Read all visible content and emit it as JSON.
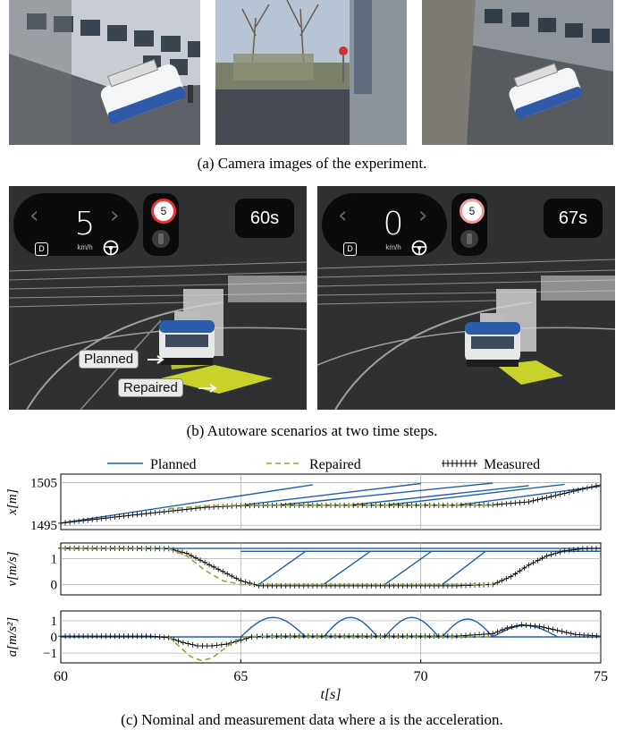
{
  "captions": {
    "a": "(a) Camera images of the experiment.",
    "b": "(b) Autoware scenarios at two time steps.",
    "c": "(c) Nominal and measurement data where a is the acceleration."
  },
  "scenarios": [
    {
      "speed": "5",
      "unit": "km/h",
      "gear": "D",
      "limit": "5",
      "time": "60s",
      "labels": {
        "planned": "Planned",
        "repaired": "Repaired"
      }
    },
    {
      "speed": "0",
      "unit": "km/h",
      "gear": "D",
      "limit": "5",
      "time": "67s"
    }
  ],
  "legend": {
    "planned": "Planned",
    "repaired": "Repaired",
    "measured": "Measured"
  },
  "colors": {
    "planned": "#1f5fa8",
    "repaired": "#8aac2e",
    "measured": "#000000",
    "grid": "#b0b0b0"
  },
  "chart_data": [
    {
      "type": "line",
      "ylabel": "x[m]",
      "ylim": [
        1494,
        1507
      ],
      "yticks": [
        1495,
        1505
      ],
      "xlim": [
        60,
        75
      ],
      "series": [
        {
          "name": "Measured",
          "x": [
            60,
            62,
            64,
            65,
            66,
            68,
            70,
            71,
            72,
            73,
            74,
            75
          ],
          "y": [
            1495.5,
            1497.4,
            1499.2,
            1499.6,
            1499.7,
            1499.7,
            1499.7,
            1499.7,
            1499.8,
            1500.5,
            1502.5,
            1504.5
          ]
        },
        {
          "name": "Repaired",
          "x": [
            63,
            64,
            65,
            66,
            68,
            70,
            72
          ],
          "y": [
            1498.9,
            1499.5,
            1499.7,
            1499.7,
            1499.7,
            1499.7,
            1499.7
          ]
        }
      ],
      "planned_segments": [
        {
          "x": [
            60,
            67
          ],
          "y": [
            1495.5,
            1504.5
          ]
        },
        {
          "x": [
            65,
            70
          ],
          "y": [
            1499.7,
            1504.8
          ]
        },
        {
          "x": [
            66,
            72
          ],
          "y": [
            1499.7,
            1504.9
          ]
        },
        {
          "x": [
            68,
            73
          ],
          "y": [
            1499.7,
            1504.3
          ]
        },
        {
          "x": [
            69,
            74
          ],
          "y": [
            1499.7,
            1504.6
          ]
        },
        {
          "x": [
            71,
            75
          ],
          "y": [
            1499.7,
            1504.2
          ]
        }
      ]
    },
    {
      "type": "line",
      "ylabel": "v[m/s]",
      "ylim": [
        -0.4,
        1.6
      ],
      "yticks": [
        0,
        1
      ],
      "xlim": [
        60,
        75
      ],
      "series": [
        {
          "name": "Measured",
          "x": [
            60,
            62,
            63,
            63.5,
            64,
            64.5,
            65,
            65.5,
            66,
            68,
            70,
            71,
            72,
            72.5,
            73,
            73.5,
            74,
            74.5,
            75
          ],
          "y": [
            1.4,
            1.39,
            1.38,
            1.2,
            0.85,
            0.5,
            0.15,
            -0.05,
            -0.05,
            -0.05,
            -0.05,
            -0.05,
            0.0,
            0.3,
            0.75,
            1.1,
            1.3,
            1.38,
            1.4
          ]
        },
        {
          "name": "Repaired",
          "x": [
            60,
            63,
            63.5,
            64,
            64.5,
            65,
            66,
            68,
            70,
            71.5,
            72
          ],
          "y": [
            1.39,
            1.38,
            1.1,
            0.55,
            0.15,
            0.0,
            0.0,
            0.0,
            0.0,
            0.0,
            0.0
          ]
        }
      ],
      "planned_segments": [
        {
          "x": [
            60,
            75
          ],
          "y": [
            1.39,
            1.39
          ]
        },
        {
          "x": [
            65,
            75
          ],
          "y": [
            1.28,
            1.28
          ]
        },
        {
          "x": [
            65.5,
            66.8,
            67,
            75
          ],
          "y": [
            0,
            1.28,
            1.28,
            1.28
          ]
        },
        {
          "x": [
            67.3,
            68.6,
            68.8,
            75
          ],
          "y": [
            0,
            1.28,
            1.28,
            1.28
          ]
        },
        {
          "x": [
            69,
            70.3,
            70.5,
            75
          ],
          "y": [
            0,
            1.28,
            1.28,
            1.28
          ]
        },
        {
          "x": [
            70.6,
            71.8,
            72,
            75
          ],
          "y": [
            0,
            1.28,
            1.28,
            1.28
          ]
        }
      ]
    },
    {
      "type": "line",
      "ylabel": "a[m/s²]",
      "ylim": [
        -1.6,
        1.6
      ],
      "yticks": [
        -1,
        0,
        1
      ],
      "xlabel": "t[s]",
      "xlim": [
        60,
        75
      ],
      "xticks": [
        60,
        65,
        70,
        75
      ],
      "series": [
        {
          "name": "Measured",
          "x": [
            60,
            62.5,
            63,
            63.4,
            63.8,
            64.2,
            64.6,
            65,
            65.3,
            65.6,
            66,
            68,
            70,
            71,
            72,
            72.4,
            72.8,
            73.3,
            73.8,
            74.3,
            75
          ],
          "y": [
            0.05,
            0.05,
            -0.05,
            -0.35,
            -0.55,
            -0.55,
            -0.45,
            -0.2,
            0.0,
            0.05,
            0.05,
            0.05,
            0.05,
            0.05,
            0.2,
            0.55,
            0.75,
            0.65,
            0.4,
            0.15,
            0.05
          ]
        },
        {
          "name": "Repaired",
          "x": [
            63,
            63.3,
            63.6,
            63.9,
            64.2,
            64.5,
            64.8,
            65.1,
            65.5,
            66,
            68,
            70,
            72
          ],
          "y": [
            0,
            -0.6,
            -1.2,
            -1.45,
            -1.3,
            -0.8,
            -0.3,
            0.0,
            0.05,
            0.0,
            0.0,
            0.0,
            0.0
          ]
        }
      ],
      "planned_segments": [
        {
          "x": [
            60,
            75
          ],
          "y": [
            0,
            0
          ]
        }
      ],
      "planned_arcs": [
        {
          "x0": 65.0,
          "x1": 66.8,
          "peak": 1.2
        },
        {
          "x0": 67.3,
          "x1": 68.8,
          "peak": 1.2
        },
        {
          "x0": 69.0,
          "x1": 70.5,
          "peak": 1.2
        },
        {
          "x0": 70.6,
          "x1": 72.0,
          "peak": 1.1
        },
        {
          "x0": 72.0,
          "x1": 73.8,
          "peak": 0.7
        }
      ]
    }
  ]
}
